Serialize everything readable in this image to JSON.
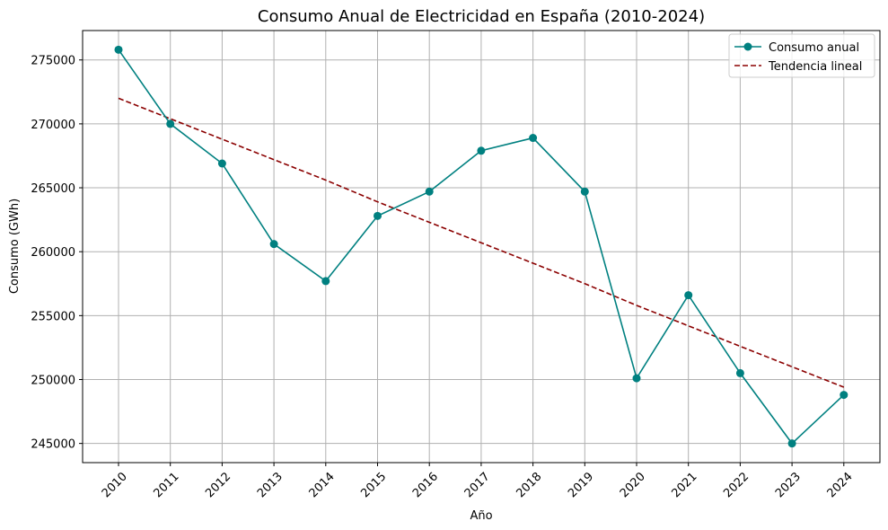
{
  "chart_data": {
    "type": "line",
    "title": "Consumo Anual de Electricidad en España (2010-2024)",
    "xlabel": "Año",
    "ylabel": "Consumo (GWh)",
    "categories": [
      "2010",
      "2011",
      "2012",
      "2013",
      "2014",
      "2015",
      "2016",
      "2017",
      "2018",
      "2019",
      "2020",
      "2021",
      "2022",
      "2023",
      "2024"
    ],
    "yticks": [
      245000,
      250000,
      255000,
      260000,
      265000,
      270000,
      275000
    ],
    "ylim": [
      243500,
      277300
    ],
    "grid": true,
    "legend_position": "top-right",
    "series": [
      {
        "name": "Consumo anual",
        "style": "solid-with-markers",
        "color": "#008080",
        "values": [
          275800,
          270000,
          266900,
          260600,
          257700,
          262800,
          264700,
          267900,
          268900,
          264700,
          250100,
          256600,
          250500,
          245000,
          248800
        ]
      },
      {
        "name": "Tendencia lineal",
        "style": "dashed",
        "color": "#8b0000",
        "values": [
          272000,
          270400,
          268800,
          267200,
          265600,
          263900,
          262300,
          260700,
          259100,
          257500,
          255800,
          254200,
          252600,
          251000,
          249400
        ]
      }
    ]
  }
}
